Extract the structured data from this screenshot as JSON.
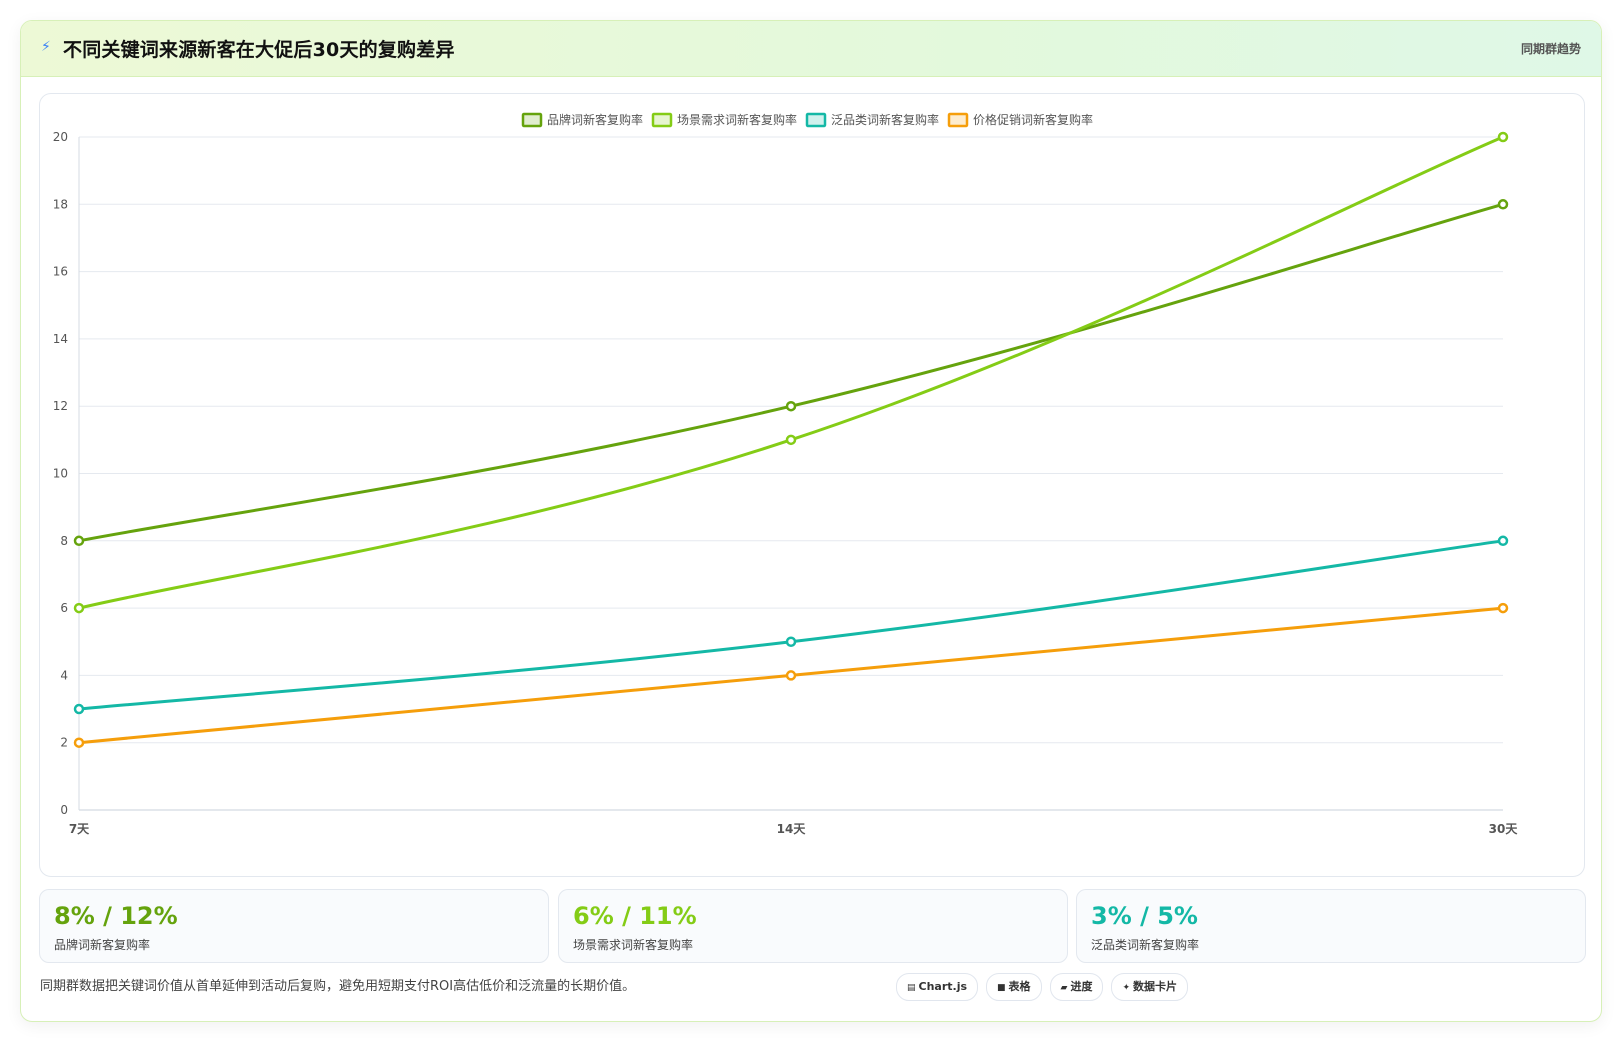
{
  "header": {
    "icon": "lightning-icon",
    "title": "不同关键词来源新客在大促后30天的复购差异",
    "tag": "同期群趋势"
  },
  "chart_data": {
    "type": "line",
    "categories": [
      "7天",
      "14天",
      "30天"
    ],
    "series": [
      {
        "name": "品牌词新客复购率",
        "values": [
          8,
          12,
          18
        ],
        "color": "#65a30d"
      },
      {
        "name": "场景需求词新客复购率",
        "values": [
          6,
          11,
          20
        ],
        "color": "#84cc16"
      },
      {
        "name": "泛品类词新客复购率",
        "values": [
          3,
          5,
          8
        ],
        "color": "#14b8a6"
      },
      {
        "name": "价格促销词新客复购率",
        "values": [
          2,
          4,
          6
        ],
        "color": "#f59e0b"
      }
    ],
    "ylim": [
      0,
      20
    ],
    "yticks": [
      0,
      2,
      4,
      6,
      8,
      10,
      12,
      14,
      16,
      18,
      20
    ],
    "grid": true,
    "legend": "top-center"
  },
  "stats": [
    {
      "value": "8% / 12%",
      "label": "品牌词新客复购率",
      "color": "#65a30d"
    },
    {
      "value": "6% / 11%",
      "label": "场景需求词新客复购率",
      "color": "#84cc16"
    },
    {
      "value": "3% / 5%",
      "label": "泛品类词新客复购率",
      "color": "#14b8a6"
    }
  ],
  "footnote": "同期群数据把关键词价值从首单延伸到活动后复购，避免用短期支付ROI高估低价和泛流量的长期价值。",
  "pills": [
    {
      "icon": "chart-icon",
      "glyph": "▤",
      "label": "Chart.js"
    },
    {
      "icon": "table-icon",
      "glyph": "■",
      "label": "表格"
    },
    {
      "icon": "progress-icon",
      "glyph": "▰",
      "label": "进度"
    },
    {
      "icon": "sparkle-icon",
      "glyph": "✦",
      "label": "数据卡片"
    }
  ]
}
